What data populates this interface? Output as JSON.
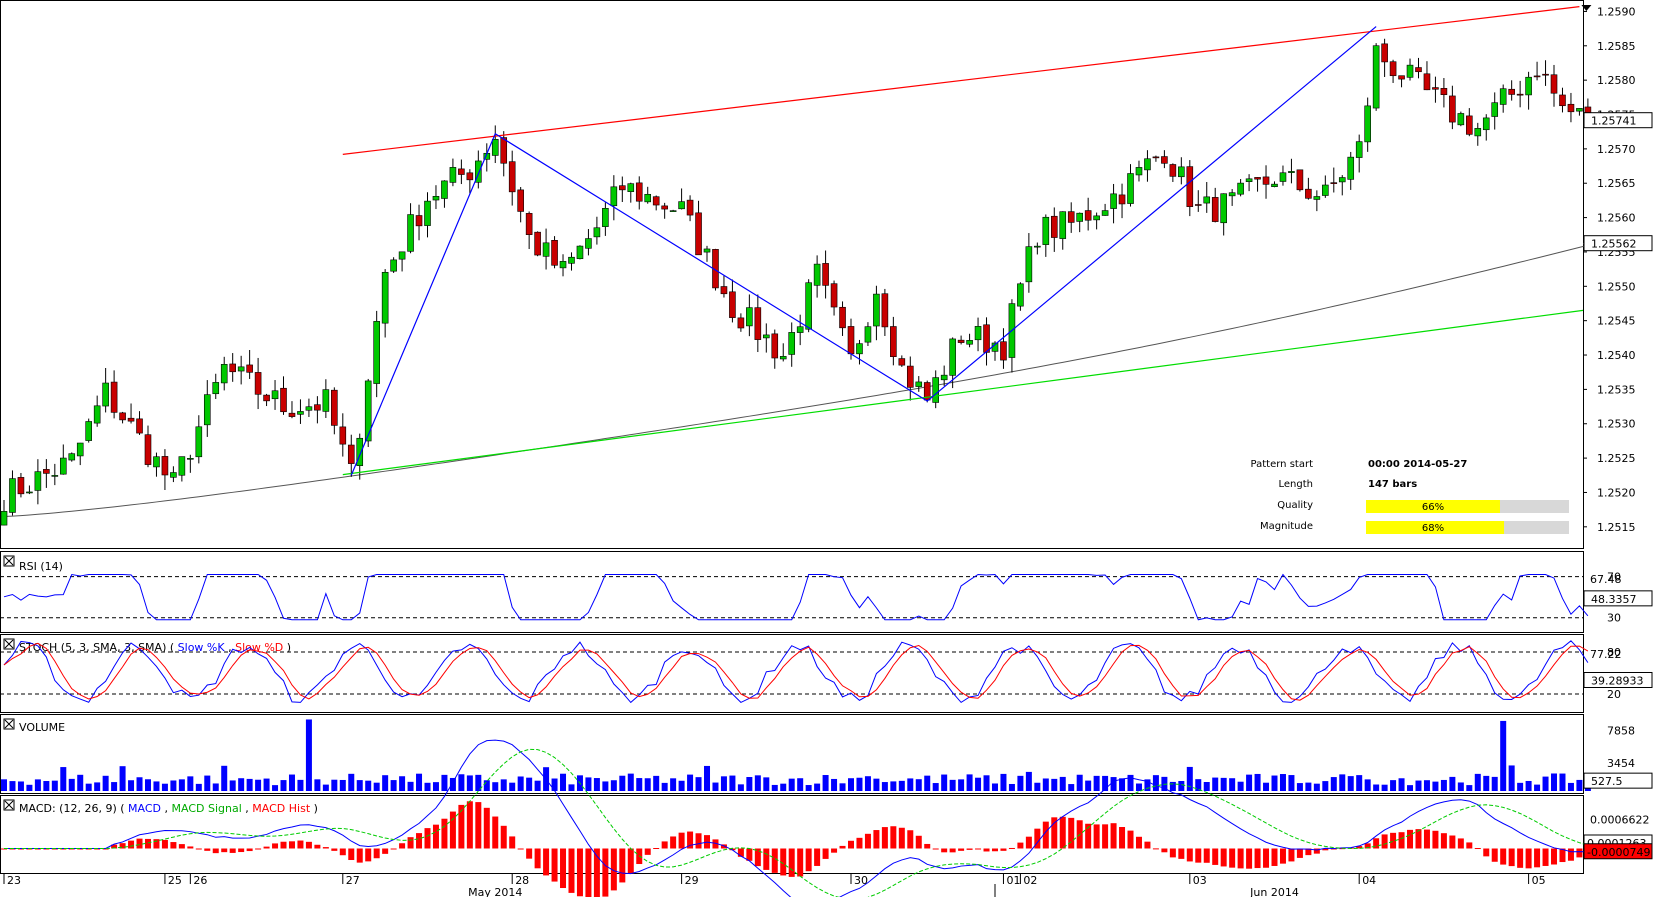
{
  "chart_data": {
    "type": "candlestick",
    "price_axis": {
      "ylim": [
        1.25125,
        1.25905
      ],
      "ticks": [
        "1.2590",
        "1.2585",
        "1.2580",
        "1.2575",
        "1.2570",
        "1.2565",
        "1.2560",
        "1.2555",
        "1.2550",
        "1.2545",
        "1.2540",
        "1.2535",
        "1.2530",
        "1.2525",
        "1.2520",
        "1.2515"
      ],
      "last_price_label": "1.25741",
      "sma_label": "1.25562"
    },
    "x_axis": {
      "day_labels": [
        {
          "text": "23",
          "bar": 0
        },
        {
          "text": "25",
          "bar": 19
        },
        {
          "text": "26",
          "bar": 22
        },
        {
          "text": "27",
          "bar": 40
        },
        {
          "text": "28",
          "bar": 60
        },
        {
          "text": "29",
          "bar": 80
        },
        {
          "text": "30",
          "bar": 100
        },
        {
          "text": "01",
          "bar": 118
        },
        {
          "text": "02",
          "bar": 120
        },
        {
          "text": "03",
          "bar": 140
        },
        {
          "text": "04",
          "bar": 160
        },
        {
          "text": "05",
          "bar": 180
        }
      ],
      "month_labels": [
        {
          "text": "May 2014",
          "bar": 58
        },
        {
          "text": "Jun 2014",
          "bar": 150
        }
      ],
      "month_separator_bar": 117
    },
    "pattern": {
      "resistance_start": {
        "bar": 40,
        "price": 1.25692
      },
      "resistance_end": {
        "bar": 186,
        "price": 1.25907
      },
      "support_start": {
        "bar": 40,
        "price": 1.25226
      },
      "support_end": {
        "bar": 186,
        "price": 1.25465
      },
      "zigzag": [
        {
          "bar": 41,
          "price": 1.25225
        },
        {
          "bar": 58,
          "price": 1.25722
        },
        {
          "bar": 109,
          "price": 1.25333
        },
        {
          "bar": 162,
          "price": 1.25878
        }
      ]
    },
    "info": {
      "pattern_start_label": "Pattern start",
      "pattern_start_value": "00:00 2014-05-27",
      "length_label": "Length",
      "length_value": "147 bars",
      "quality_label": "Quality",
      "quality_value": 66,
      "quality_text": "66%",
      "magnitude_label": "Magnitude",
      "magnitude_value": 68,
      "magnitude_text": "68%"
    },
    "rsi": {
      "title": "RSI (14)",
      "levels": [
        "70",
        "30"
      ],
      "current_label": "67.48",
      "value_label": "48.3357"
    },
    "stoch": {
      "title_prefix": "STOCH (5, 3, SMA, 3, SMA)",
      "k_label": "Slow %K",
      "d_label": "Slow %D",
      "levels": [
        "80",
        "20"
      ],
      "upper_label": "77.22",
      "value_label": "39.28933"
    },
    "volume": {
      "title": "VOLUME",
      "ticks": [
        "7858",
        "3454"
      ],
      "value_label": "527.5"
    },
    "macd": {
      "title_prefix": "MACD: (12, 26, 9)",
      "macd_label": "MACD",
      "signal_label": "MACD Signal",
      "hist_label": "MACD Hist",
      "top_label": "0.0006622",
      "signal_value_label": "0.0001263",
      "value_label": "-0.0000749"
    },
    "colors": {
      "up": "#00c800",
      "down": "#c80000",
      "resistance": "#ff0000",
      "support": "#00dd00",
      "zigzag": "#0000ff",
      "sma": "#555555",
      "rsi": "#0000ff",
      "stoch_k": "#0000ff",
      "stoch_d": "#ff0000",
      "volume": "#0000ff",
      "macd": "#0000ff",
      "macd_signal": "#00cc00",
      "macd_hist": "#ff0000",
      "bar_fill": "#ffff00"
    }
  }
}
